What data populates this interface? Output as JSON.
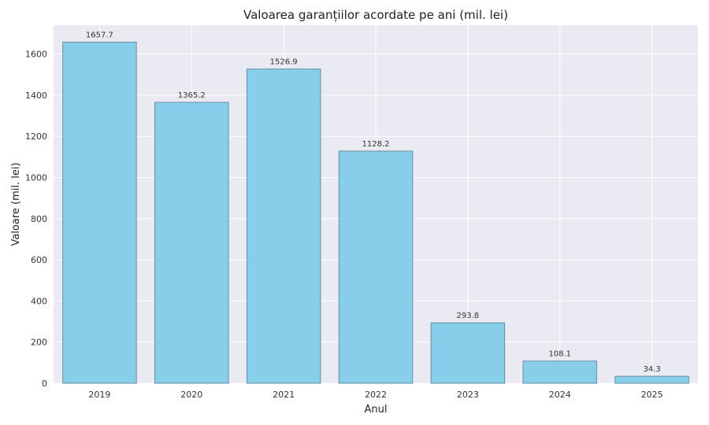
{
  "chart_data": {
    "type": "bar",
    "title": "Valoarea garanțiilor acordate pe ani (mil. lei)",
    "xlabel": "Anul",
    "ylabel": "Valoare (mil. lei)",
    "categories": [
      "2019",
      "2020",
      "2021",
      "2022",
      "2023",
      "2024",
      "2025"
    ],
    "values": [
      1657.7,
      1365.2,
      1526.9,
      1128.2,
      293.8,
      108.1,
      34.3
    ],
    "value_labels": [
      "1657.7",
      "1365.2",
      "1526.9",
      "1128.2",
      "293.8",
      "108.1",
      "34.3"
    ],
    "ylim": [
      0,
      1740
    ],
    "yticks": [
      0,
      200,
      400,
      600,
      800,
      1000,
      1200,
      1400,
      1600
    ],
    "grid": true,
    "colors": {
      "bar": "#87ceeb",
      "bar_edge": "#6a8ea0",
      "plot_bg": "#eaeaf2",
      "grid": "#ffffff"
    }
  }
}
